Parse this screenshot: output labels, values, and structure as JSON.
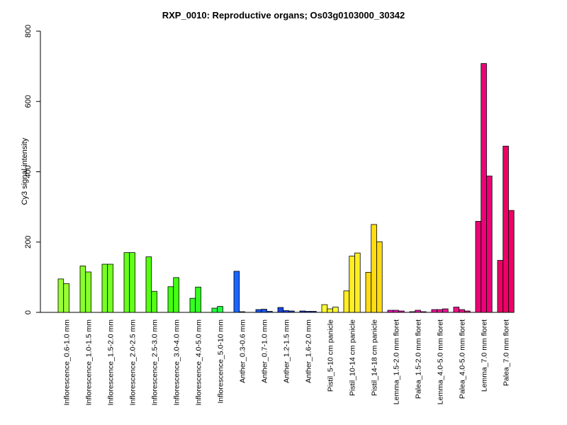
{
  "chart_data": {
    "type": "bar",
    "title": "RXP_0010: Reproductive organs; Os03g0103000_30342",
    "xlabel": "",
    "ylabel": "Cy3 signal intensity",
    "ylim": [
      0,
      800
    ],
    "yticks": [
      0,
      200,
      400,
      600,
      800
    ],
    "grid": false,
    "legend": "none",
    "groups": [
      {
        "label": "Inflorescence_0.6-1.0 mm",
        "color": "#99ff33",
        "values": [
          95,
          82
        ]
      },
      {
        "label": "Inflorescence_1.0-1.5 mm",
        "color": "#88ff2a",
        "values": [
          132,
          115
        ]
      },
      {
        "label": "Inflorescence_1.5-2.0 mm",
        "color": "#77ff22",
        "values": [
          137,
          137
        ]
      },
      {
        "label": "Inflorescence_2.0-2.5 mm",
        "color": "#66ff1a",
        "values": [
          170,
          170
        ]
      },
      {
        "label": "Inflorescence_2.5-3.0 mm",
        "color": "#55ff11",
        "values": [
          158,
          60
        ]
      },
      {
        "label": "Inflorescence_3.0-4.0 mm",
        "color": "#44ff11",
        "values": [
          73,
          99
        ]
      },
      {
        "label": "Inflorescence_4.0-5.0 mm",
        "color": "#33ff22",
        "values": [
          40,
          72
        ]
      },
      {
        "label": "Inflorescence_5.0-10 mm",
        "color": "#22ff44",
        "values": [
          12,
          17
        ]
      },
      {
        "label": "Anther_0.3-0.6 mm",
        "color": "#1a66ff",
        "values": [
          117,
          2
        ]
      },
      {
        "label": "Anther_0.7-1.0 mm",
        "color": "#1a55ee",
        "values": [
          8,
          9,
          3
        ]
      },
      {
        "label": "Anther_1.2-1.5 mm",
        "color": "#1a44dd",
        "values": [
          14,
          5,
          4
        ]
      },
      {
        "label": "Anther_1.6-2.0 mm",
        "color": "#1a33cc",
        "values": [
          4,
          3,
          3
        ]
      },
      {
        "label": "Pistil_5-10 cm panicle",
        "color": "#ffff33",
        "values": [
          22,
          10,
          15
        ]
      },
      {
        "label": "Pistil_10-14 cm panicle",
        "color": "#ffee22",
        "values": [
          61,
          160,
          169
        ]
      },
      {
        "label": "Pistil_14-18 cm panicle",
        "color": "#ffdd11",
        "values": [
          114,
          250,
          201
        ]
      },
      {
        "label": "Lemma_1.5-2.0 mm floret",
        "color": "#ee11bb",
        "values": [
          6,
          6,
          4
        ]
      },
      {
        "label": "Palea_1.5-2.0 mm floret",
        "color": "#ee11aa",
        "values": [
          2,
          6,
          2
        ]
      },
      {
        "label": "Lemma_4.0-5.0 mm floret",
        "color": "#ee1199",
        "values": [
          8,
          8,
          10
        ]
      },
      {
        "label": "Palea_4.0-5.0 mm floret",
        "color": "#ee1188",
        "values": [
          15,
          8,
          4
        ]
      },
      {
        "label": "Lemma_7.0 mm floret",
        "color": "#ee0077",
        "values": [
          259,
          708,
          388
        ]
      },
      {
        "label": "Palea_7.0 mm floret",
        "color": "#ee0066",
        "values": [
          148,
          473,
          290
        ]
      }
    ]
  }
}
